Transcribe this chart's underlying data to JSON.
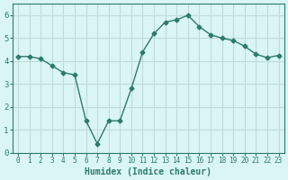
{
  "x": [
    0,
    1,
    2,
    3,
    4,
    5,
    6,
    7,
    8,
    9,
    10,
    11,
    12,
    13,
    14,
    15,
    16,
    17,
    18,
    19,
    20,
    21,
    22,
    23
  ],
  "y": [
    4.2,
    4.2,
    4.1,
    3.8,
    3.5,
    3.4,
    1.4,
    0.4,
    1.4,
    1.4,
    2.8,
    4.4,
    5.2,
    5.7,
    5.8,
    6.0,
    5.5,
    5.15,
    5.0,
    4.9,
    4.65,
    4.3,
    4.15,
    4.25
  ],
  "xlabel": "Humidex (Indice chaleur)",
  "line_color": "#2d7a6e",
  "bg_color": "#d9f5f5",
  "grid_color": "#c0dada",
  "axis_color": "#2d7a6e",
  "ylim": [
    0,
    6.5
  ],
  "xlim": [
    -0.5,
    23.5
  ],
  "yticks": [
    0,
    1,
    2,
    3,
    4,
    5,
    6
  ],
  "xticks": [
    0,
    1,
    2,
    3,
    4,
    5,
    6,
    7,
    8,
    9,
    10,
    11,
    12,
    13,
    14,
    15,
    16,
    17,
    18,
    19,
    20,
    21,
    22,
    23
  ]
}
